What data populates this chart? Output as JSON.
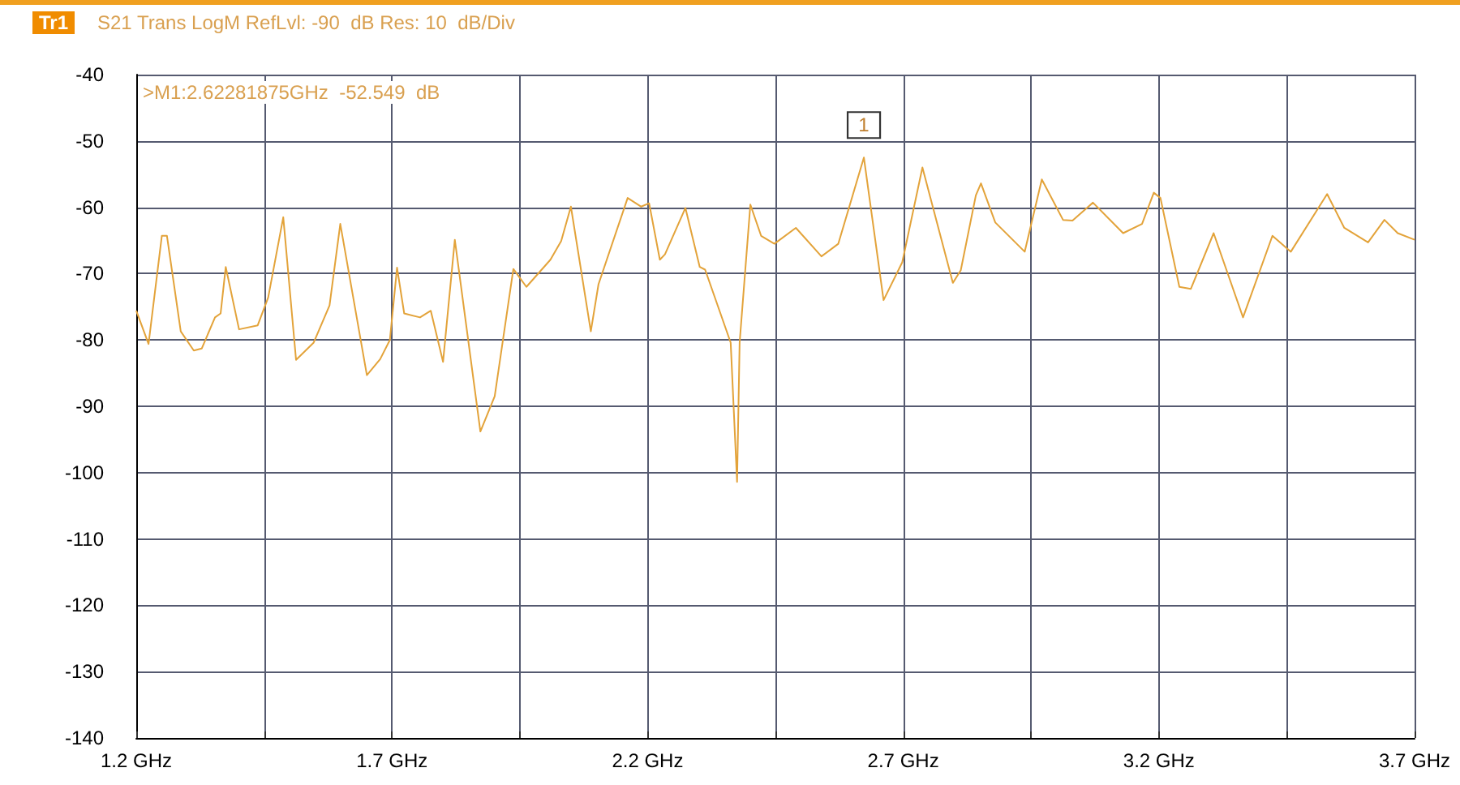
{
  "chart_data": {
    "type": "line",
    "title": "S21 Trans LogM RefLvl: -90  dB Res: 10  dB/Div",
    "annotations": [
      "Tr1",
      ">M1:2.62281875GHz  -52.549  dB",
      {
        "text": "1",
        "x": 2.623,
        "y": -52.5
      }
    ],
    "x": [
      1.2,
      1.224,
      1.25,
      1.26,
      1.287,
      1.3125,
      1.328,
      1.354,
      1.365,
      1.375,
      1.401,
      1.4375,
      1.458,
      1.4875,
      1.5125,
      1.547,
      1.578,
      1.599,
      1.651,
      1.677,
      1.696,
      1.71,
      1.724,
      1.755,
      1.776,
      1.8,
      1.823,
      1.873,
      1.901,
      1.9375,
      1.963,
      2.01,
      2.031,
      2.05,
      2.089,
      2.104,
      2.161,
      2.1875,
      2.203,
      2.224,
      2.234,
      2.274,
      2.302,
      2.3125,
      2.3625,
      2.375,
      2.38,
      2.401,
      2.422,
      2.448,
      2.49,
      2.54,
      2.573,
      2.623,
      2.6615,
      2.698,
      2.7375,
      2.797,
      2.8125,
      2.842,
      2.852,
      2.88,
      2.9375,
      2.948,
      2.971,
      3.0125,
      3.031,
      3.071,
      3.13,
      3.167,
      3.19,
      3.203,
      3.24,
      3.2625,
      3.307,
      3.3645,
      3.422,
      3.458,
      3.529,
      3.5625,
      3.609,
      3.641,
      3.667,
      3.7
    ],
    "series": [
      {
        "color": "#e3a33a",
        "values": [
          -75.6,
          -80.6,
          -64.3,
          -64.3,
          -78.7,
          -81.6,
          -81.3,
          -76.6,
          -76.0,
          -69.0,
          -78.4,
          -77.8,
          -73.6,
          -61.5,
          -83.0,
          -80.4,
          -74.8,
          -62.5,
          -85.3,
          -82.9,
          -80.0,
          -69.1,
          -76.0,
          -76.6,
          -75.6,
          -83.3,
          -64.9,
          -93.8,
          -88.5,
          -69.3,
          -72.0,
          -67.9,
          -65.1,
          -59.9,
          -78.7,
          -71.6,
          -58.6,
          -59.9,
          -59.4,
          -67.9,
          -67.1,
          -60.1,
          -69.0,
          -69.4,
          -80.4,
          -101.4,
          -80.4,
          -59.6,
          -64.3,
          -65.5,
          -63.1,
          -67.4,
          -65.5,
          -52.5,
          -74.0,
          -68.3,
          -54.0,
          -71.4,
          -69.5,
          -58.2,
          -56.4,
          -62.3,
          -66.7,
          -63.3,
          -55.8,
          -61.9,
          -62.0,
          -59.3,
          -63.9,
          -62.5,
          -57.8,
          -58.6,
          -72.0,
          -72.3,
          -63.9,
          -76.6,
          -64.3,
          -66.7,
          -58.0,
          -63.1,
          -65.3,
          -61.9,
          -63.9,
          -64.9
        ]
      }
    ],
    "xlim": [
      1.2,
      3.7
    ],
    "xticks": [
      {
        "value": 1.2,
        "label": "1.2 GHz"
      },
      {
        "value": 1.45,
        "label": null
      },
      {
        "value": 1.7,
        "label": "1.7 GHz"
      },
      {
        "value": 1.95,
        "label": null
      },
      {
        "value": 2.2,
        "label": "2.2 GHz"
      },
      {
        "value": 2.45,
        "label": null
      },
      {
        "value": 2.7,
        "label": "2.7 GHz"
      },
      {
        "value": 2.95,
        "label": null
      },
      {
        "value": 3.2,
        "label": "3.2 GHz"
      },
      {
        "value": 3.45,
        "label": null
      },
      {
        "value": 3.7,
        "label": "3.7 GHz"
      }
    ],
    "ylim": [
      -140,
      -40
    ],
    "yticks": [
      -140,
      -130,
      -120,
      -110,
      -100,
      -90,
      -80,
      -70,
      -60,
      -50,
      -40
    ],
    "grid": true,
    "marker": "none",
    "line_style": "solid"
  }
}
